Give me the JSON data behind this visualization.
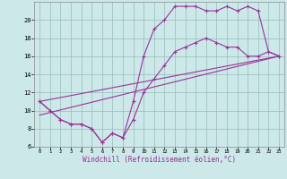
{
  "bg_color": "#cce8e8",
  "grid_color": "#99bbbb",
  "line_color": "#993399",
  "marker_color": "#993399",
  "series1_x": [
    0,
    1,
    2,
    3,
    4,
    5,
    6,
    7,
    8,
    9,
    10,
    11,
    12,
    13,
    14,
    15,
    16,
    17,
    18,
    19,
    20,
    21,
    22,
    23
  ],
  "series1_y": [
    11,
    10,
    9,
    8.5,
    8.5,
    8,
    6.5,
    7.5,
    7,
    11,
    16,
    19,
    20,
    21.5,
    21.5,
    21.5,
    21,
    21,
    21.5,
    21,
    21.5,
    21,
    16.5,
    16
  ],
  "series2_x": [
    0,
    1,
    2,
    3,
    4,
    5,
    6,
    7,
    8,
    9,
    10,
    11,
    12,
    13,
    14,
    15,
    16,
    17,
    18,
    19,
    20,
    21,
    22,
    23
  ],
  "series2_y": [
    11,
    10,
    9,
    8.5,
    8.5,
    8,
    6.5,
    7.5,
    7,
    9,
    12,
    13.5,
    15,
    16.5,
    17,
    17.5,
    18,
    17.5,
    17,
    17,
    16,
    16,
    16.5,
    16
  ],
  "series3_x": [
    0,
    23
  ],
  "series3_y": [
    9.5,
    16
  ],
  "series4_x": [
    0,
    23
  ],
  "series4_y": [
    11,
    16
  ],
  "xlim": [
    -0.5,
    23.5
  ],
  "ylim": [
    6,
    22
  ],
  "xticks": [
    0,
    1,
    2,
    3,
    4,
    5,
    6,
    7,
    8,
    9,
    10,
    11,
    12,
    13,
    14,
    15,
    16,
    17,
    18,
    19,
    20,
    21,
    22,
    23
  ],
  "yticks": [
    6,
    8,
    10,
    12,
    14,
    16,
    18,
    20
  ],
  "xlabel": "Windchill (Refroidissement éolien,°C)"
}
